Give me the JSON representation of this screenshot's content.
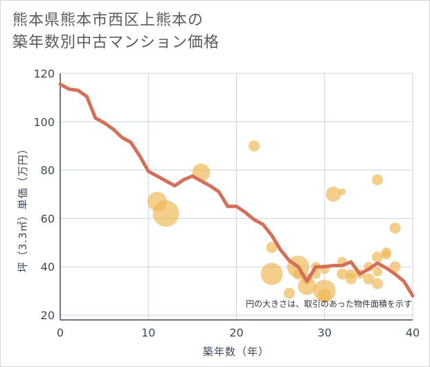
{
  "title": {
    "line1": "熊本県熊本市西区上熊本の",
    "line2": "築年数別中古マンション価格"
  },
  "note": "円の大きさは、取引のあった物件面積を示す",
  "colors": {
    "line": "#d4705a",
    "bubble": "#f0b95a",
    "grid": "#c9d3df",
    "axis": "#3b4a5a"
  },
  "chart_data": {
    "type": "scatter",
    "xlabel": "築年数（年）",
    "ylabel": "坪（3.3㎡）単価（万円）",
    "xlim": [
      0,
      40
    ],
    "ylim": [
      18,
      120
    ],
    "xticks": [
      0,
      10,
      20,
      30,
      40
    ],
    "yticks": [
      20,
      40,
      60,
      80,
      100,
      120
    ],
    "grid": true,
    "line_series": {
      "x": [
        0,
        1,
        2,
        3,
        4,
        5,
        6,
        7,
        8,
        9,
        10,
        11,
        12,
        13,
        14,
        15,
        16,
        17,
        18,
        19,
        20,
        21,
        22,
        23,
        24,
        25,
        26,
        27,
        28,
        29,
        30,
        31,
        32,
        33,
        34,
        35,
        36,
        37,
        38,
        39,
        40
      ],
      "y": [
        115.5,
        113.5,
        113,
        110.5,
        101.5,
        99.5,
        97,
        93.5,
        91.5,
        86,
        79.5,
        77.5,
        75.5,
        73.5,
        76,
        77.5,
        75.5,
        73.5,
        71,
        65,
        65,
        62.5,
        59.5,
        57.5,
        53,
        47,
        42.5,
        40,
        34,
        40,
        40,
        40.5,
        40.5,
        42,
        37,
        39,
        41.5,
        39.5,
        37,
        34,
        28
      ]
    },
    "bubbles": [
      {
        "x": 11,
        "y": 67,
        "r": 14
      },
      {
        "x": 12,
        "y": 62,
        "r": 19
      },
      {
        "x": 16,
        "y": 79,
        "r": 13
      },
      {
        "x": 22,
        "y": 90,
        "r": 8
      },
      {
        "x": 24,
        "y": 48,
        "r": 8
      },
      {
        "x": 24,
        "y": 37,
        "r": 16
      },
      {
        "x": 26,
        "y": 29,
        "r": 8
      },
      {
        "x": 27,
        "y": 40,
        "r": 16
      },
      {
        "x": 27,
        "y": 37,
        "r": 8
      },
      {
        "x": 28,
        "y": 32,
        "r": 13
      },
      {
        "x": 28,
        "y": 35,
        "r": 8
      },
      {
        "x": 29,
        "y": 40,
        "r": 7
      },
      {
        "x": 29,
        "y": 37,
        "r": 7
      },
      {
        "x": 30,
        "y": 30,
        "r": 16
      },
      {
        "x": 30,
        "y": 28,
        "r": 10
      },
      {
        "x": 30,
        "y": 39,
        "r": 7
      },
      {
        "x": 31,
        "y": 70,
        "r": 11
      },
      {
        "x": 32,
        "y": 71,
        "r": 5
      },
      {
        "x": 32,
        "y": 42,
        "r": 7
      },
      {
        "x": 32,
        "y": 37,
        "r": 8
      },
      {
        "x": 33,
        "y": 35,
        "r": 8
      },
      {
        "x": 33,
        "y": 37,
        "r": 7
      },
      {
        "x": 34,
        "y": 37,
        "r": 7
      },
      {
        "x": 35,
        "y": 35,
        "r": 8
      },
      {
        "x": 35,
        "y": 40,
        "r": 7
      },
      {
        "x": 36,
        "y": 76,
        "r": 8
      },
      {
        "x": 36,
        "y": 44,
        "r": 8
      },
      {
        "x": 36,
        "y": 38,
        "r": 7
      },
      {
        "x": 36,
        "y": 33,
        "r": 8
      },
      {
        "x": 37,
        "y": 46,
        "r": 7
      },
      {
        "x": 37,
        "y": 45,
        "r": 7
      },
      {
        "x": 38,
        "y": 56,
        "r": 8
      },
      {
        "x": 38,
        "y": 40,
        "r": 8
      }
    ]
  }
}
